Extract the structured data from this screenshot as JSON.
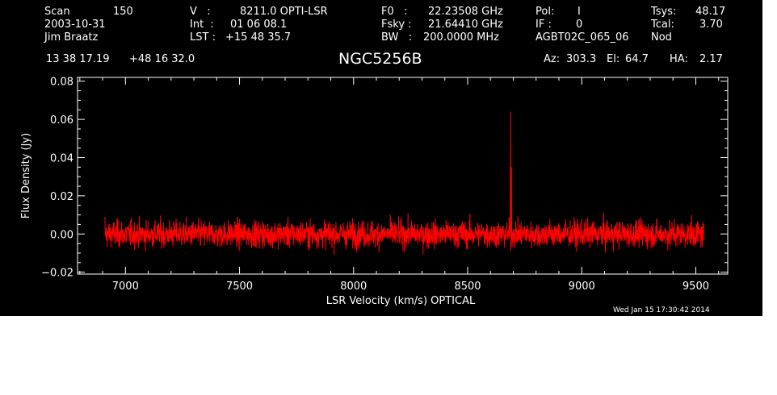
{
  "header": {
    "scan_label": "Scan",
    "scan_value": "150",
    "date": "2003-10-31",
    "observer": "Jim Braatz",
    "v_label": "V   :",
    "v_value": "8211.0 OPTI-LSR",
    "int_label": "Int  :",
    "int_value": "01 06 08.1",
    "lst_label": "LST :",
    "lst_value": "+15 48 35.7",
    "f0_label": "F0   :",
    "f0_value": "22.23508 GHz",
    "fsky_label": "Fsky :",
    "fsky_value": "21.64410 GHz",
    "bw_label": "BW   :",
    "bw_value": "200.0000 MHz",
    "pol_label": "Pol:",
    "pol_value": "I",
    "if_label": "IF :",
    "if_value": "0",
    "project": "AGBT02C_065_06",
    "tsys_label": "Tsys:",
    "tsys_value": "48.17",
    "tcal_label": "Tcal:",
    "tcal_value": "3.70",
    "mode": "Nod",
    "ra": "13 38 17.19",
    "dec": "+48 16 32.0",
    "source": "NGC5256B",
    "az_label": "Az:",
    "az_value": "303.3",
    "el_label": "El:",
    "el_value": "64.7",
    "ha_label": "HA:",
    "ha_value": "2.17",
    "timestamp": "Wed Jan 15 17:30:42 2014"
  },
  "colors": {
    "background": "#000000",
    "axes": "#ffffff",
    "trace": "#ff0000"
  },
  "chart_data": {
    "type": "line",
    "title": "NGC5256B",
    "xlabel": "LSR Velocity (km/s) OPTICAL",
    "ylabel": "Flux Density (Jy)",
    "xlim": [
      6790,
      9640
    ],
    "ylim": [
      -0.021,
      0.082
    ],
    "x_ticks": [
      7000,
      7500,
      8000,
      8500,
      9000,
      9500
    ],
    "x_tick_labels": [
      "7000",
      "7500",
      "8000",
      "8500",
      "9000",
      "9500"
    ],
    "y_ticks": [
      -0.02,
      0.0,
      0.02,
      0.04,
      0.06,
      0.08
    ],
    "y_tick_labels": [
      "−0.02",
      "0.00",
      "0.02",
      "0.04",
      "0.06",
      "0.08"
    ],
    "grid": false,
    "series": [
      {
        "x_start": 6910,
        "x_end": 9535,
        "noise_rms_jy": 0.0035,
        "features": [
          {
            "x": 6910,
            "y": 0.009
          },
          {
            "x": 8688,
            "y": 0.064
          },
          {
            "x": 8692,
            "y": 0.035
          }
        ]
      }
    ]
  }
}
